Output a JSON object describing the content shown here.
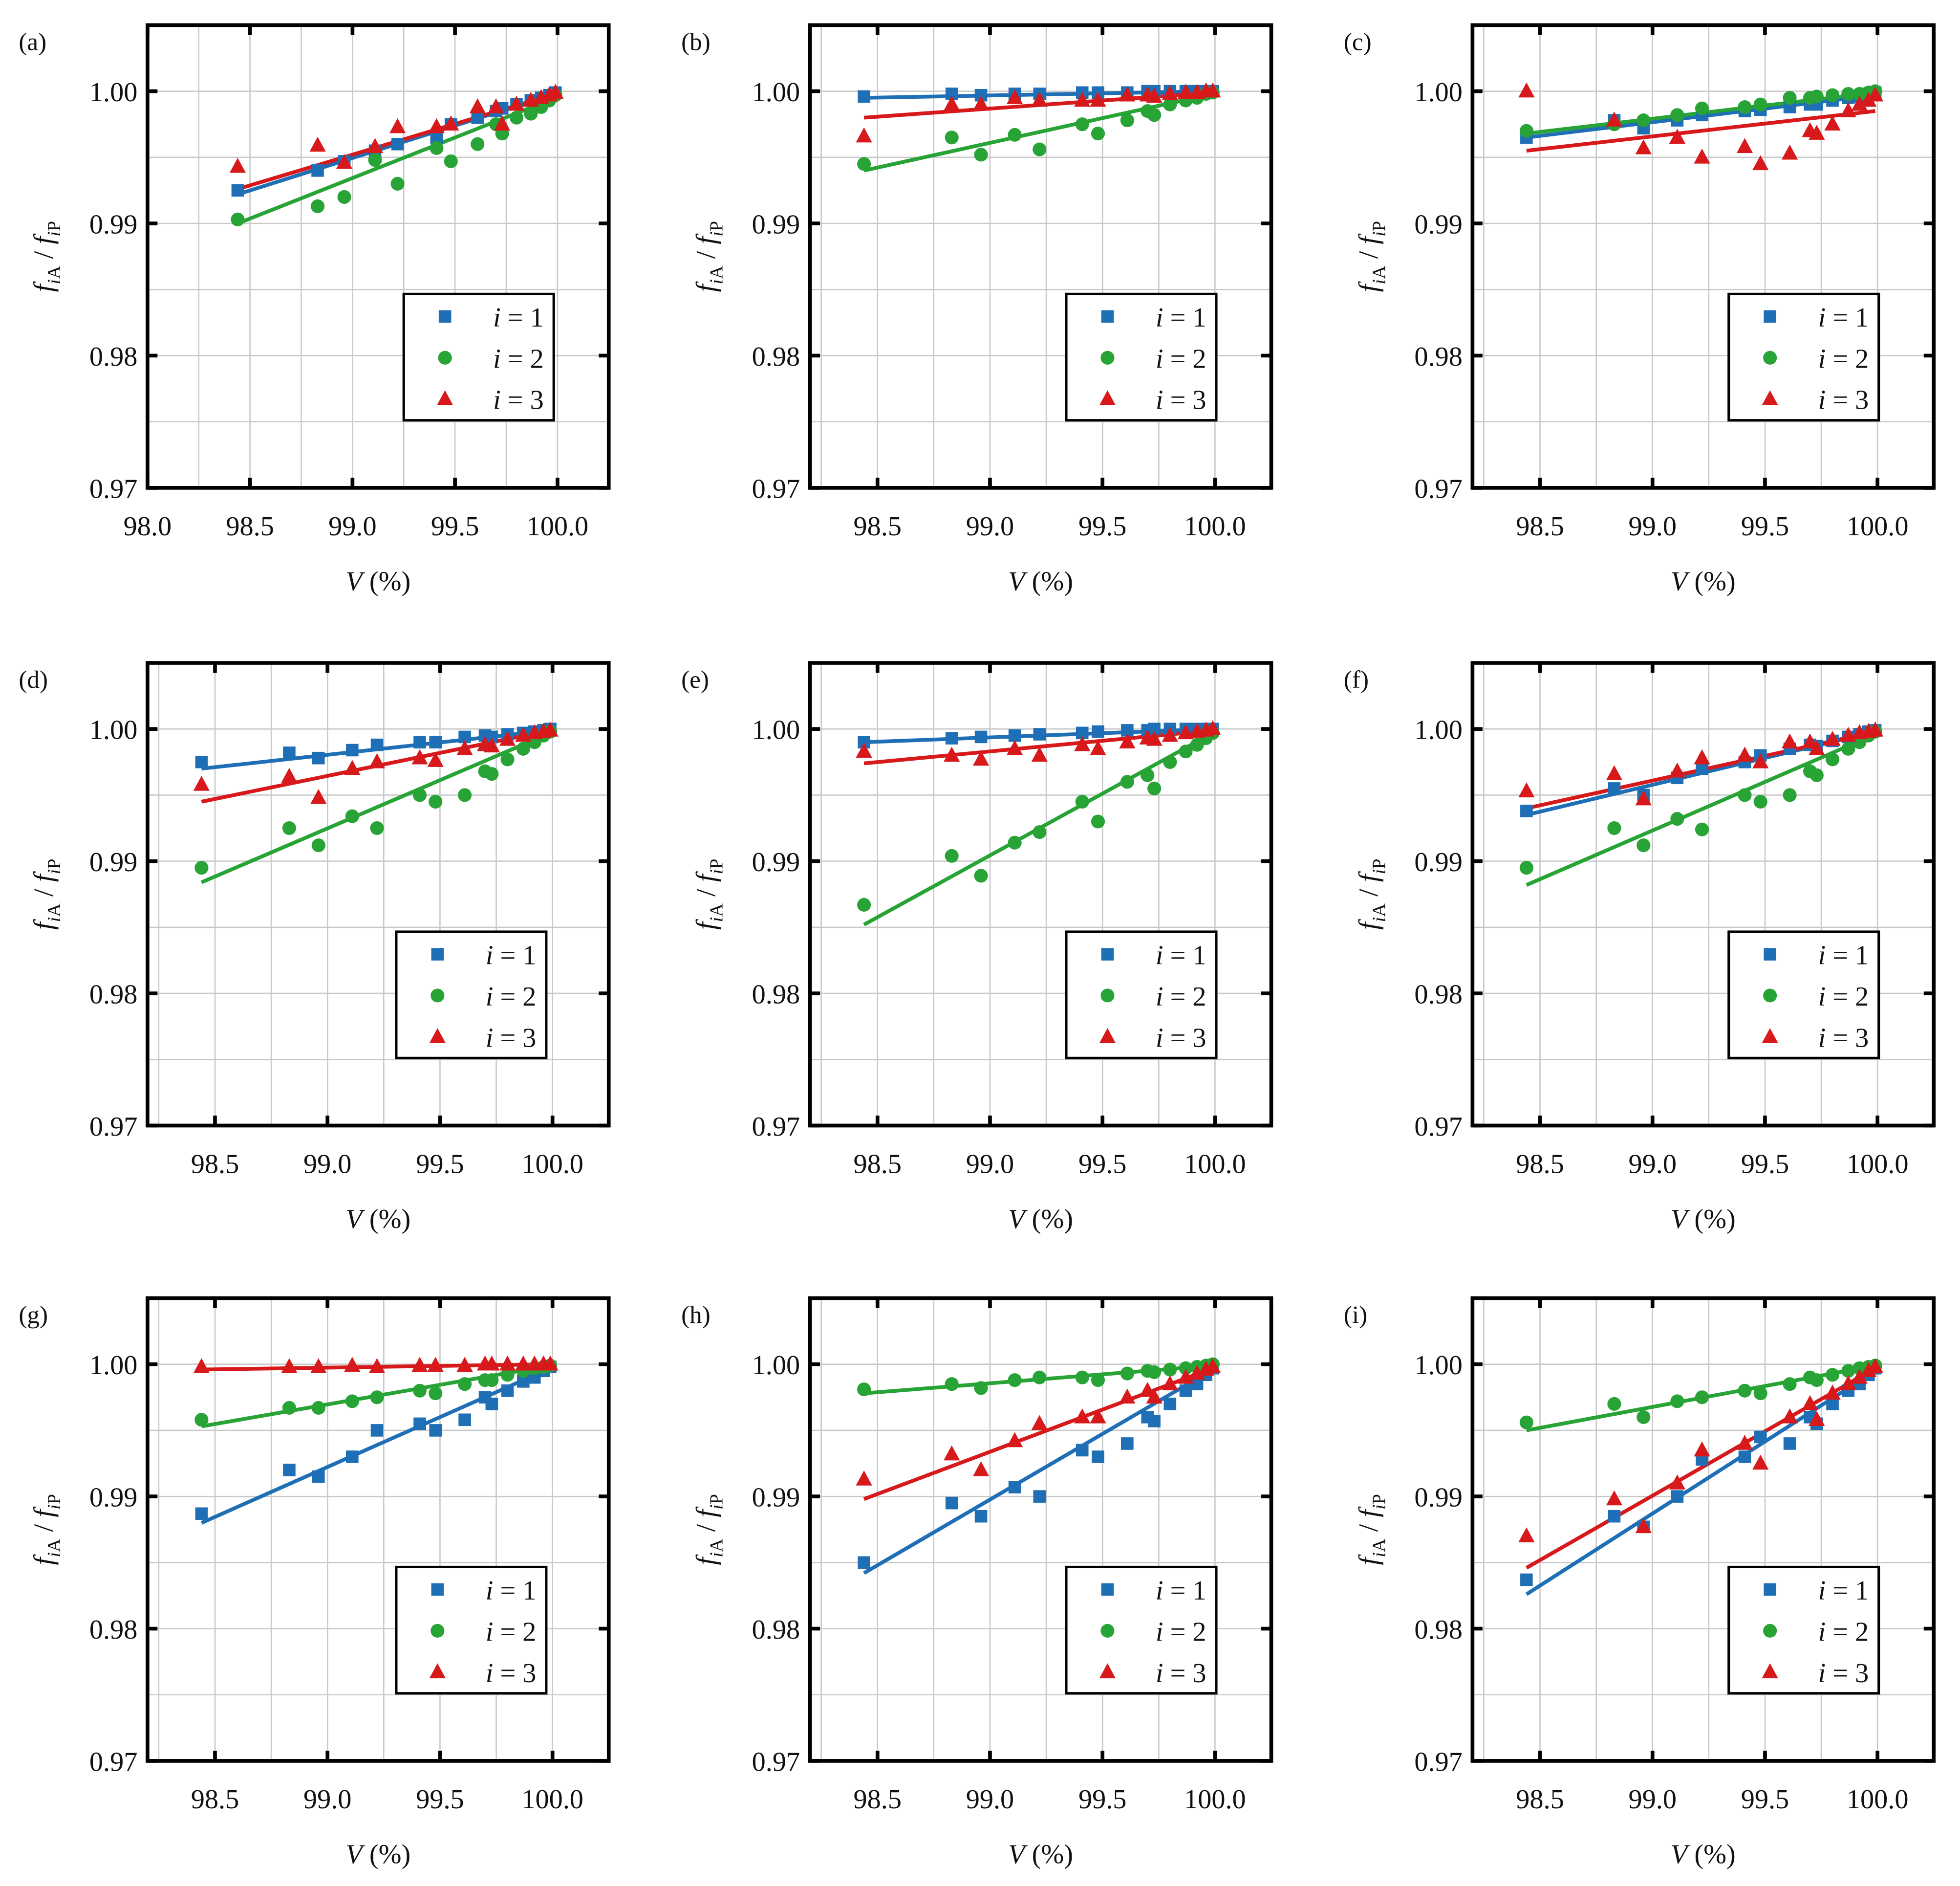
{
  "chart_data": {
    "type": "scatter",
    "layout": "3x3 grid",
    "xlabel": "V (%)",
    "ylabel": "f_iA / f_iP",
    "ylim": [
      0.97,
      1.005
    ],
    "yticks": [
      "0.97",
      "0.98",
      "0.99",
      "1.00"
    ],
    "legend_placement": "lower-right",
    "colors": {
      "i1": "#1f6fb6",
      "i2": "#28a336",
      "i3": "#d7191c"
    },
    "legend": [
      "i = 1",
      "i = 2",
      "i = 3"
    ],
    "markers": [
      "square",
      "circle",
      "triangle"
    ],
    "x": [
      98.44,
      98.83,
      98.96,
      99.11,
      99.22,
      99.41,
      99.48,
      99.61,
      99.7,
      99.73,
      99.8,
      99.87,
      99.92,
      99.96,
      99.99
    ],
    "panels": [
      {
        "label": "(a)",
        "xlim": [
          98.0,
          100.25
        ],
        "xticks": [
          "98.0",
          "98.5",
          "99.0",
          "99.5",
          "100.0"
        ],
        "series": [
          {
            "name": "i = 1",
            "values": [
              0.9925,
              0.994,
              0.9947,
              0.9955,
              0.996,
              0.9965,
              0.9975,
              0.998,
              0.9985,
              0.9987,
              0.999,
              0.9993,
              0.9995,
              0.9997,
              0.9999
            ],
            "fit": [
              0.9922,
              0.9998
            ]
          },
          {
            "name": "i = 2",
            "values": [
              0.9903,
              0.9913,
              0.992,
              0.9948,
              0.993,
              0.9957,
              0.9947,
              0.996,
              0.9975,
              0.9968,
              0.998,
              0.9983,
              0.9988,
              0.9993,
              0.9997
            ],
            "fit": [
              0.99,
              0.9995
            ]
          },
          {
            "name": "i = 3",
            "values": [
              0.9943,
              0.9959,
              0.9946,
              0.9958,
              0.9973,
              0.9973,
              0.9975,
              0.9988,
              0.9988,
              0.9975,
              0.999,
              0.9993,
              0.9995,
              0.9997,
              0.9999
            ],
            "fit": [
              0.9926,
              0.9998
            ]
          }
        ]
      },
      {
        "label": "(b)",
        "xlim": [
          98.2,
          100.25
        ],
        "xticks": [
          "98.5",
          "99.0",
          "99.5",
          "100.0"
        ],
        "series": [
          {
            "name": "i = 1",
            "values": [
              0.9996,
              0.9998,
              0.9997,
              0.9998,
              0.9998,
              0.9999,
              0.9999,
              0.9999,
              1.0,
              1.0,
              1.0,
              1.0,
              1.0,
              1.0,
              1.0
            ],
            "fit": [
              0.9995,
              1.0
            ]
          },
          {
            "name": "i = 2",
            "values": [
              0.9945,
              0.9965,
              0.9952,
              0.9967,
              0.9956,
              0.9975,
              0.9968,
              0.9978,
              0.9985,
              0.9982,
              0.999,
              0.9993,
              0.9995,
              0.9998,
              0.9999
            ],
            "fit": [
              0.994,
              0.9998
            ]
          },
          {
            "name": "i = 3",
            "values": [
              0.9966,
              0.999,
              0.999,
              0.9995,
              0.9993,
              0.9993,
              0.9993,
              0.9997,
              0.9997,
              0.9996,
              0.9998,
              0.9999,
              0.9999,
              1.0,
              1.0
            ],
            "fit": [
              0.998,
              0.9999
            ]
          }
        ]
      },
      {
        "label": "(c)",
        "xlim": [
          98.2,
          100.25
        ],
        "xticks": [
          "98.5",
          "99.0",
          "99.5",
          "100.0"
        ],
        "series": [
          {
            "name": "i = 1",
            "values": [
              0.9965,
              0.9978,
              0.9972,
              0.9978,
              0.9982,
              0.9985,
              0.9986,
              0.9988,
              0.999,
              0.999,
              0.9993,
              0.9995,
              0.9996,
              0.9998,
              0.9999
            ],
            "fit": [
              0.9965,
              0.9997
            ]
          },
          {
            "name": "i = 2",
            "values": [
              0.997,
              0.9975,
              0.9978,
              0.9982,
              0.9987,
              0.9988,
              0.999,
              0.9995,
              0.9995,
              0.9996,
              0.9997,
              0.9998,
              0.9998,
              0.9999,
              1.0
            ],
            "fit": [
              0.9968,
              0.9999
            ]
          },
          {
            "name": "i = 3",
            "values": [
              1.0,
              0.9978,
              0.9957,
              0.9965,
              0.995,
              0.9958,
              0.9945,
              0.9953,
              0.997,
              0.9968,
              0.9975,
              0.9985,
              0.999,
              0.9993,
              0.9997
            ],
            "fit": [
              0.9955,
              0.9985
            ]
          }
        ]
      },
      {
        "label": "(d)",
        "xlim": [
          98.2,
          100.25
        ],
        "xticks": [
          "98.5",
          "99.0",
          "99.5",
          "100.0"
        ],
        "series": [
          {
            "name": "i = 1",
            "values": [
              0.9975,
              0.9982,
              0.9978,
              0.9984,
              0.9988,
              0.999,
              0.999,
              0.9994,
              0.9995,
              0.9994,
              0.9996,
              0.9997,
              0.9998,
              0.9999,
              1.0
            ],
            "fit": [
              0.997,
              0.9999
            ]
          },
          {
            "name": "i = 2",
            "values": [
              0.9895,
              0.9925,
              0.9912,
              0.9934,
              0.9925,
              0.995,
              0.9945,
              0.995,
              0.9968,
              0.9966,
              0.9977,
              0.9985,
              0.999,
              0.9995,
              0.9998
            ],
            "fit": [
              0.9884,
              0.9997
            ]
          },
          {
            "name": "i = 3",
            "values": [
              0.9958,
              0.9964,
              0.9948,
              0.997,
              0.9975,
              0.9978,
              0.9976,
              0.9985,
              0.9988,
              0.9987,
              0.9992,
              0.9995,
              0.9997,
              0.9998,
              0.9999
            ],
            "fit": [
              0.9945,
              0.9999
            ]
          }
        ]
      },
      {
        "label": "(e)",
        "xlim": [
          98.2,
          100.25
        ],
        "xticks": [
          "98.5",
          "99.0",
          "99.5",
          "100.0"
        ],
        "series": [
          {
            "name": "i = 1",
            "values": [
              0.999,
              0.9993,
              0.9994,
              0.9995,
              0.9996,
              0.9997,
              0.9998,
              0.9999,
              0.9999,
              1.0,
              1.0,
              1.0,
              1.0,
              1.0,
              1.0
            ],
            "fit": [
              0.999,
              1.0
            ]
          },
          {
            "name": "i = 2",
            "values": [
              0.9867,
              0.9904,
              0.9889,
              0.9914,
              0.9922,
              0.9945,
              0.993,
              0.996,
              0.9965,
              0.9955,
              0.9975,
              0.9983,
              0.9988,
              0.9993,
              0.9997
            ],
            "fit": [
              0.9852,
              0.9997
            ]
          },
          {
            "name": "i = 3",
            "values": [
              0.9983,
              0.998,
              0.9977,
              0.9985,
              0.998,
              0.9988,
              0.9985,
              0.999,
              0.9993,
              0.9992,
              0.9995,
              0.9997,
              0.9998,
              0.9999,
              1.0
            ],
            "fit": [
              0.9974,
              0.9999
            ]
          }
        ]
      },
      {
        "label": "(f)",
        "xlim": [
          98.2,
          100.25
        ],
        "xticks": [
          "98.5",
          "99.0",
          "99.5",
          "100.0"
        ],
        "series": [
          {
            "name": "i = 1",
            "values": [
              0.9938,
              0.9955,
              0.995,
              0.9963,
              0.997,
              0.9975,
              0.998,
              0.9985,
              0.9988,
              0.9987,
              0.9991,
              0.9994,
              0.9996,
              0.9998,
              0.9999
            ],
            "fit": [
              0.9935,
              0.9998
            ]
          },
          {
            "name": "i = 2",
            "values": [
              0.9895,
              0.9925,
              0.9912,
              0.9932,
              0.9924,
              0.995,
              0.9945,
              0.995,
              0.9968,
              0.9965,
              0.9977,
              0.9985,
              0.999,
              0.9995,
              0.9998
            ],
            "fit": [
              0.9882,
              0.9996
            ]
          },
          {
            "name": "i = 3",
            "values": [
              0.9953,
              0.9966,
              0.9947,
              0.9968,
              0.9978,
              0.998,
              0.9975,
              0.999,
              0.999,
              0.9985,
              0.9992,
              0.9995,
              0.9997,
              0.9998,
              0.9999
            ],
            "fit": [
              0.994,
              0.9998
            ]
          }
        ]
      },
      {
        "label": "(g)",
        "xlim": [
          98.2,
          100.25
        ],
        "xticks": [
          "98.5",
          "99.0",
          "99.5",
          "100.0"
        ],
        "series": [
          {
            "name": "i = 1",
            "values": [
              0.9887,
              0.992,
              0.9915,
              0.993,
              0.995,
              0.9955,
              0.995,
              0.9958,
              0.9975,
              0.997,
              0.998,
              0.9987,
              0.999,
              0.9995,
              0.9998
            ],
            "fit": [
              0.988,
              0.9997
            ]
          },
          {
            "name": "i = 2",
            "values": [
              0.9958,
              0.9967,
              0.9967,
              0.9972,
              0.9975,
              0.998,
              0.9978,
              0.9985,
              0.9988,
              0.9988,
              0.9992,
              0.9995,
              0.9997,
              0.9998,
              0.9999
            ],
            "fit": [
              0.9953,
              0.9999
            ]
          },
          {
            "name": "i = 3",
            "values": [
              0.9998,
              0.9998,
              0.9998,
              0.9999,
              0.9998,
              0.9999,
              0.9999,
              0.9999,
              1.0,
              1.0,
              1.0,
              1.0,
              1.0,
              1.0,
              1.0
            ],
            "fit": [
              0.9996,
              1.0
            ]
          }
        ]
      },
      {
        "label": "(h)",
        "xlim": [
          98.2,
          100.25
        ],
        "xticks": [
          "98.5",
          "99.0",
          "99.5",
          "100.0"
        ],
        "series": [
          {
            "name": "i = 1",
            "values": [
              0.985,
              0.9895,
              0.9885,
              0.9907,
              0.99,
              0.9935,
              0.993,
              0.994,
              0.996,
              0.9957,
              0.997,
              0.998,
              0.9985,
              0.9992,
              0.9997
            ],
            "fit": [
              0.9842,
              0.9996
            ]
          },
          {
            "name": "i = 2",
            "values": [
              0.9981,
              0.9985,
              0.9982,
              0.9988,
              0.999,
              0.999,
              0.9988,
              0.9993,
              0.9995,
              0.9994,
              0.9996,
              0.9997,
              0.9998,
              0.9999,
              1.0
            ],
            "fit": [
              0.9978,
              0.9999
            ]
          },
          {
            "name": "i = 3",
            "values": [
              0.9913,
              0.9932,
              0.992,
              0.9942,
              0.9955,
              0.996,
              0.996,
              0.9975,
              0.998,
              0.9975,
              0.9985,
              0.999,
              0.9993,
              0.9996,
              0.9998
            ],
            "fit": [
              0.9898,
              0.9997
            ]
          }
        ]
      },
      {
        "label": "(i)",
        "xlim": [
          98.2,
          100.25
        ],
        "xticks": [
          "98.5",
          "99.0",
          "99.5",
          "100.0"
        ],
        "series": [
          {
            "name": "i = 1",
            "values": [
              0.9837,
              0.9885,
              0.9877,
              0.99,
              0.9928,
              0.993,
              0.9945,
              0.994,
              0.996,
              0.9955,
              0.997,
              0.998,
              0.9985,
              0.9992,
              0.9997
            ],
            "fit": [
              0.9826,
              0.9995
            ]
          },
          {
            "name": "i = 2",
            "values": [
              0.9956,
              0.997,
              0.996,
              0.9972,
              0.9975,
              0.998,
              0.9978,
              0.9985,
              0.999,
              0.9988,
              0.9992,
              0.9995,
              0.9997,
              0.9998,
              0.9999
            ],
            "fit": [
              0.995,
              0.9999
            ]
          },
          {
            "name": "i = 3",
            "values": [
              0.987,
              0.9898,
              0.9877,
              0.991,
              0.9935,
              0.994,
              0.9925,
              0.996,
              0.997,
              0.9958,
              0.9978,
              0.9985,
              0.999,
              0.9995,
              0.9998
            ],
            "fit": [
              0.9846,
              0.9997
            ]
          }
        ]
      }
    ]
  }
}
